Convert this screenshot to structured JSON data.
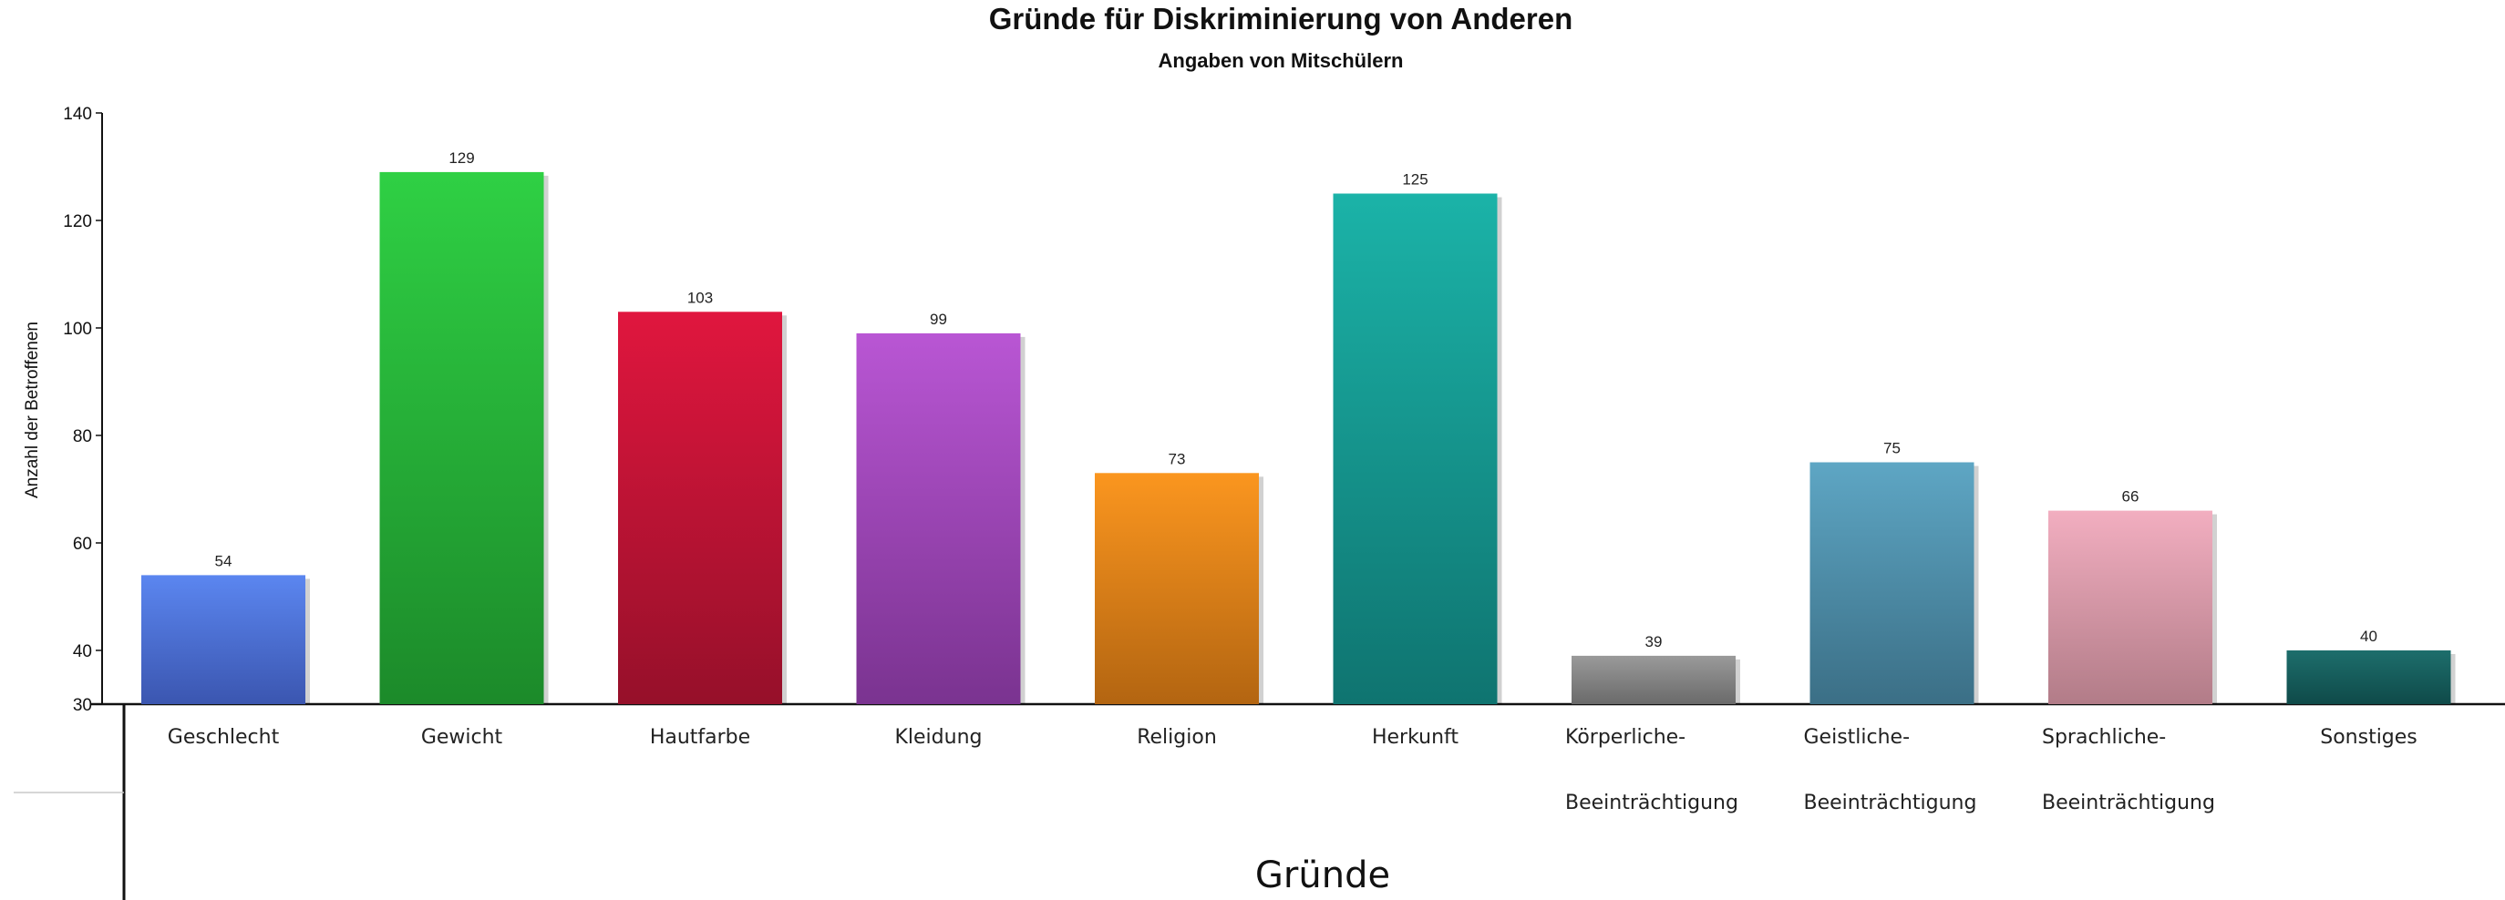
{
  "chart_data": {
    "type": "bar",
    "title": "Gründe für Diskriminierung von Anderen",
    "subtitle": "Angaben von Mitschülern",
    "xlabel": "Gründe",
    "ylabel": "Anzahl der Betroffenen",
    "ylim": [
      30,
      140
    ],
    "yticks": [
      "30",
      "40",
      "60",
      "80",
      "100",
      "120",
      "140"
    ],
    "grid": false,
    "categories": [
      [
        "Geschlecht"
      ],
      [
        "Gewicht"
      ],
      [
        "Hautfarbe"
      ],
      [
        "Kleidung"
      ],
      [
        "Religion"
      ],
      [
        "Herkunft"
      ],
      [
        "Körperliche-",
        "Beeinträchtigung"
      ],
      [
        "Geistliche-",
        "Beeinträchtigung"
      ],
      [
        "Sprachliche-",
        "Beeinträchtigung"
      ],
      [
        "Sonstiges"
      ]
    ],
    "values": [
      54,
      129,
      103,
      99,
      73,
      125,
      39,
      75,
      66,
      40
    ],
    "colors": [
      [
        "#5b86f0",
        "#3b56b0"
      ],
      [
        "#2fd044",
        "#1c8a2a"
      ],
      [
        "#e0163e",
        "#96102a"
      ],
      [
        "#b956d4",
        "#7a3390"
      ],
      [
        "#fb961f",
        "#b36511"
      ],
      [
        "#1bb3a8",
        "#0f7470"
      ],
      [
        "#9a9a9a",
        "#6a6a6a"
      ],
      [
        "#5ea6c4",
        "#3b6f86"
      ],
      [
        "#f2aec0",
        "#b27c88"
      ],
      [
        "#1d6e6c",
        "#0f4a49"
      ]
    ]
  }
}
